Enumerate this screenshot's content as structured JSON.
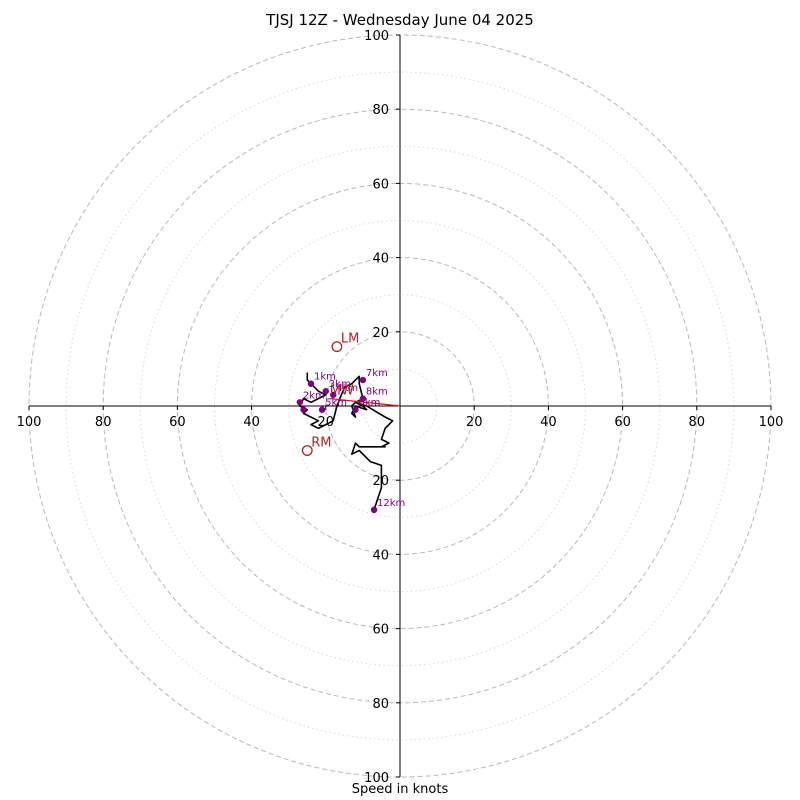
{
  "chart_data": {
    "type": "hodograph",
    "title": "TJSJ 12Z - Wednesday June 04 2025",
    "xlabel": "Speed in knots",
    "xlim": [
      -100,
      100
    ],
    "ylim": [
      -100,
      100
    ],
    "rings_major": [
      20,
      40,
      60,
      80,
      100
    ],
    "rings_minor": [
      10,
      30,
      50,
      70,
      90
    ],
    "x_tick_labels": [
      "100",
      "80",
      "60",
      "40",
      "20",
      "20",
      "40",
      "60",
      "80",
      "100"
    ],
    "y_tick_labels": [
      "100",
      "80",
      "60",
      "40",
      "20",
      "20",
      "40",
      "60",
      "80",
      "100"
    ],
    "hodograph_line": [
      [
        -25,
        9
      ],
      [
        -25,
        7
      ],
      [
        -24,
        6
      ],
      [
        -23,
        5
      ],
      [
        -22,
        4
      ],
      [
        -20,
        3
      ],
      [
        -22,
        2
      ],
      [
        -24,
        1
      ],
      [
        -26,
        2
      ],
      [
        -27,
        0
      ],
      [
        -25,
        -1
      ],
      [
        -26,
        -2
      ],
      [
        -24,
        -3
      ],
      [
        -22,
        -4
      ],
      [
        -24,
        -5
      ],
      [
        -22,
        -6
      ],
      [
        -20,
        -5
      ],
      [
        -18,
        -4
      ],
      [
        -17,
        0
      ],
      [
        -15,
        5
      ],
      [
        -13,
        6
      ],
      [
        -11,
        8
      ],
      [
        -11,
        6
      ],
      [
        -10,
        2
      ],
      [
        -12,
        1
      ],
      [
        -10,
        0
      ],
      [
        -9,
        -1
      ],
      [
        -12,
        0
      ],
      [
        -13,
        -2
      ],
      [
        -12,
        -3
      ],
      [
        -13,
        0
      ],
      [
        -12,
        1
      ],
      [
        -9,
        0
      ],
      [
        -4,
        -3
      ],
      [
        -2,
        -4
      ],
      [
        -4,
        -6
      ],
      [
        -5,
        -9
      ],
      [
        -3,
        -10
      ],
      [
        -5,
        -11
      ],
      [
        -4,
        -11
      ],
      [
        -11,
        -11
      ],
      [
        -12,
        -10
      ],
      [
        -13,
        -13
      ],
      [
        -11,
        -12
      ],
      [
        -8,
        -15
      ],
      [
        -5,
        -16
      ],
      [
        -5,
        -18
      ],
      [
        -5,
        -22
      ],
      [
        -6,
        -25
      ],
      [
        -7,
        -28
      ]
    ],
    "height_markers": [
      {
        "label": "1km",
        "u": -24,
        "v": 6
      },
      {
        "label": "2km",
        "u": -27,
        "v": 1
      },
      {
        "label": "3km",
        "u": -20,
        "v": 4
      },
      {
        "label": "4km",
        "u": -18,
        "v": 3
      },
      {
        "label": "5km",
        "u": -21,
        "v": -1
      },
      {
        "label": "6km",
        "u": -12,
        "v": -1
      },
      {
        "label": "7km",
        "u": -10,
        "v": 7
      },
      {
        "label": "8km",
        "u": -10,
        "v": 2
      },
      {
        "label": "",
        "u": -26,
        "v": -1
      },
      {
        "label": "12km",
        "u": -7,
        "v": -28
      }
    ],
    "storm_motion": [
      {
        "label": "LM",
        "u": -17,
        "v": 16
      },
      {
        "label": "RM",
        "u": -25,
        "v": -12
      },
      {
        "label": "MW",
        "u": -20,
        "v": 2
      }
    ],
    "shear_vector": {
      "from": [
        0,
        0
      ],
      "to": [
        -19,
        2
      ]
    },
    "colors": {
      "hodograph": "#000000",
      "height_marker": "#800080",
      "storm_motion": "#b22222",
      "shear_vector": "#ff0000",
      "major_ring": "#b8b8b8",
      "minor_ring": "#d8d8d8"
    }
  }
}
